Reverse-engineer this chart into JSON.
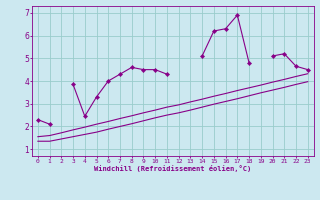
{
  "xlabel": "Windchill (Refroidissement éolien,°C)",
  "background_color": "#cce8f0",
  "line_color": "#880088",
  "grid_color": "#99cccc",
  "x_data": [
    0,
    1,
    2,
    3,
    4,
    5,
    6,
    7,
    8,
    9,
    10,
    11,
    12,
    13,
    14,
    15,
    16,
    17,
    18,
    19,
    20,
    21,
    22,
    23
  ],
  "y_main": [
    2.3,
    2.1,
    null,
    3.85,
    2.45,
    3.3,
    4.0,
    4.3,
    4.6,
    4.5,
    4.5,
    4.3,
    null,
    null,
    5.1,
    6.2,
    6.3,
    6.9,
    4.8,
    null,
    5.1,
    5.2,
    4.65,
    4.5
  ],
  "y_line1": [
    1.35,
    1.35,
    1.45,
    1.55,
    1.65,
    1.75,
    1.88,
    2.0,
    2.12,
    2.25,
    2.38,
    2.5,
    2.6,
    2.72,
    2.85,
    2.98,
    3.1,
    3.22,
    3.35,
    3.48,
    3.6,
    3.72,
    3.85,
    3.97
  ],
  "y_line2": [
    1.55,
    1.6,
    1.72,
    1.85,
    1.97,
    2.1,
    2.22,
    2.35,
    2.47,
    2.6,
    2.72,
    2.85,
    2.95,
    3.08,
    3.2,
    3.33,
    3.45,
    3.58,
    3.7,
    3.82,
    3.95,
    4.07,
    4.2,
    4.32
  ],
  "ylim": [
    0.7,
    7.3
  ],
  "xlim": [
    -0.5,
    23.5
  ],
  "yticks": [
    1,
    2,
    3,
    4,
    5,
    6,
    7
  ],
  "xticks": [
    0,
    1,
    2,
    3,
    4,
    5,
    6,
    7,
    8,
    9,
    10,
    11,
    12,
    13,
    14,
    15,
    16,
    17,
    18,
    19,
    20,
    21,
    22,
    23
  ]
}
